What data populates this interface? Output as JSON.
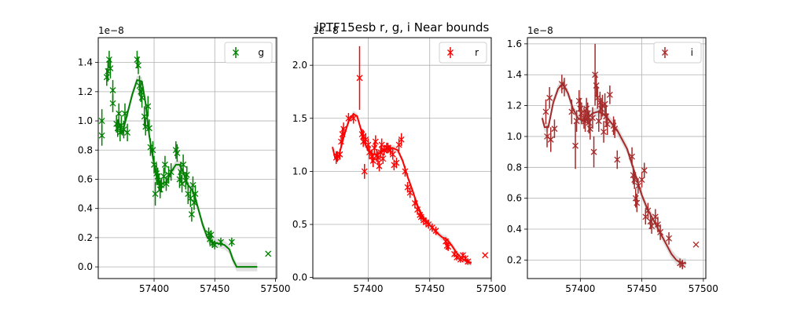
{
  "figure": {
    "title": "iPTF15esb  r, g, i Near bounds"
  },
  "chart_data": [
    {
      "type": "scatter",
      "band": "g",
      "color": "#008000",
      "legend": "g",
      "legend_position": "top-right",
      "grid": true,
      "scale_label": "1e−8",
      "xlim": [
        57354,
        57501
      ],
      "ylim": [
        -0.08,
        1.57
      ],
      "xticks": [
        57400,
        57450,
        57500
      ],
      "yticks": [
        0.0,
        0.2,
        0.4,
        0.6,
        0.8,
        1.0,
        1.2,
        1.4
      ],
      "x_tick_labels": [
        "57400",
        "57450",
        "57500"
      ],
      "y_tick_labels": [
        "0.0",
        "0.2",
        "0.4",
        "0.6",
        "0.8",
        "1.0",
        "1.2",
        "1.4"
      ],
      "points": [
        [
          57357,
          1.0,
          0.08
        ],
        [
          57357,
          0.9,
          0.07
        ],
        [
          57361,
          1.3,
          0.06
        ],
        [
          57362,
          1.34,
          0.07
        ],
        [
          57363,
          1.42,
          0.06
        ],
        [
          57364,
          1.36,
          0.07
        ],
        [
          57366,
          1.21,
          0.07
        ],
        [
          57366,
          1.12,
          0.06
        ],
        [
          57369,
          0.98,
          0.06
        ],
        [
          57370,
          0.95,
          0.06
        ],
        [
          57371,
          1.05,
          0.07
        ],
        [
          57372,
          0.92,
          0.06
        ],
        [
          57373,
          0.97,
          0.06
        ],
        [
          57375,
          0.94,
          0.06
        ],
        [
          57376,
          1.05,
          0.07
        ],
        [
          57378,
          0.92,
          0.06
        ],
        [
          57386,
          1.42,
          0.06
        ],
        [
          57387,
          1.38,
          0.06
        ],
        [
          57388,
          1.24,
          0.07
        ],
        [
          57389,
          1.2,
          0.07
        ],
        [
          57390,
          1.16,
          0.07
        ],
        [
          57392,
          1.03,
          0.07
        ],
        [
          57393,
          0.96,
          0.06
        ],
        [
          57395,
          1.1,
          0.07
        ],
        [
          57396,
          0.95,
          0.06
        ],
        [
          57397,
          0.82,
          0.06
        ],
        [
          57399,
          0.8,
          0.06
        ],
        [
          57400,
          0.7,
          0.06
        ],
        [
          57401,
          0.5,
          0.08
        ],
        [
          57402,
          0.64,
          0.07
        ],
        [
          57403,
          0.62,
          0.06
        ],
        [
          57404,
          0.58,
          0.06
        ],
        [
          57405,
          0.53,
          0.06
        ],
        [
          57406,
          0.56,
          0.05
        ],
        [
          57408,
          0.62,
          0.06
        ],
        [
          57409,
          0.7,
          0.06
        ],
        [
          57410,
          0.57,
          0.05
        ],
        [
          57412,
          0.63,
          0.06
        ],
        [
          57414,
          0.65,
          0.06
        ],
        [
          57418,
          0.8,
          0.06
        ],
        [
          57419,
          0.78,
          0.06
        ],
        [
          57421,
          0.6,
          0.06
        ],
        [
          57422,
          0.65,
          0.07
        ],
        [
          57423,
          0.57,
          0.06
        ],
        [
          57424,
          0.7,
          0.07
        ],
        [
          57426,
          0.59,
          0.06
        ],
        [
          57427,
          0.63,
          0.06
        ],
        [
          57428,
          0.5,
          0.07
        ],
        [
          57430,
          0.47,
          0.06
        ],
        [
          57431,
          0.36,
          0.05
        ],
        [
          57432,
          0.56,
          0.06
        ],
        [
          57433,
          0.44,
          0.05
        ],
        [
          57434,
          0.5,
          0.06
        ],
        [
          57445,
          0.23,
          0.04
        ],
        [
          57446,
          0.19,
          0.04
        ],
        [
          57447,
          0.22,
          0.03
        ],
        [
          57448,
          0.16,
          0.03
        ],
        [
          57450,
          0.15,
          0.03
        ],
        [
          57455,
          0.17,
          0.03
        ],
        [
          57464,
          0.17,
          0.03
        ],
        [
          57494,
          0.09,
          0.0
        ]
      ],
      "model": [
        [
          57370,
          1.0
        ],
        [
          57374,
          0.92
        ],
        [
          57378,
          1.05
        ],
        [
          57382,
          1.18
        ],
        [
          57386,
          1.28
        ],
        [
          57390,
          1.27
        ],
        [
          57393,
          1.12
        ],
        [
          57396,
          0.9
        ],
        [
          57399,
          0.75
        ],
        [
          57402,
          0.62
        ],
        [
          57406,
          0.57
        ],
        [
          57410,
          0.58
        ],
        [
          57414,
          0.65
        ],
        [
          57418,
          0.7
        ],
        [
          57421,
          0.7
        ],
        [
          57424,
          0.65
        ],
        [
          57427,
          0.57
        ],
        [
          57431,
          0.53
        ],
        [
          57434,
          0.47
        ],
        [
          57437,
          0.38
        ],
        [
          57440,
          0.29
        ],
        [
          57444,
          0.2
        ],
        [
          57448,
          0.17
        ],
        [
          57453,
          0.16
        ],
        [
          57458,
          0.15
        ],
        [
          57462,
          0.12
        ],
        [
          57465,
          0.05
        ],
        [
          57468,
          0.0
        ],
        [
          57476,
          0.0
        ],
        [
          57485,
          0.0
        ]
      ]
    },
    {
      "type": "scatter",
      "band": "r",
      "color": "#ff0000",
      "legend": "r",
      "legend_position": "top-right",
      "grid": true,
      "scale_label": "1e−8",
      "xlim": [
        57355,
        57500
      ],
      "ylim": [
        -0.01,
        2.26
      ],
      "xticks": [
        57400,
        57450,
        57500
      ],
      "yticks": [
        0.0,
        0.5,
        1.0,
        1.5,
        2.0
      ],
      "x_tick_labels": [
        "57400",
        "57450",
        "57500"
      ],
      "y_tick_labels": [
        "0.0",
        "0.5",
        "1.0",
        "1.5",
        "2.0"
      ],
      "points": [
        [
          57374,
          1.13,
          0.06
        ],
        [
          57375,
          1.14,
          0.05
        ],
        [
          57377,
          1.16,
          0.05
        ],
        [
          57378,
          1.28,
          0.06
        ],
        [
          57379,
          1.35,
          0.06
        ],
        [
          57380,
          1.4,
          0.06
        ],
        [
          57384,
          1.5,
          0.05
        ],
        [
          57388,
          1.5,
          0.05
        ],
        [
          57393,
          1.88,
          0.3
        ],
        [
          57395,
          1.35,
          0.05
        ],
        [
          57396,
          1.28,
          0.05
        ],
        [
          57396,
          1.33,
          0.06
        ],
        [
          57397,
          1.0,
          0.07
        ],
        [
          57398,
          1.3,
          0.06
        ],
        [
          57400,
          1.25,
          0.06
        ],
        [
          57401,
          1.18,
          0.06
        ],
        [
          57403,
          1.14,
          0.06
        ],
        [
          57404,
          1.1,
          0.06
        ],
        [
          57405,
          1.22,
          0.06
        ],
        [
          57406,
          1.28,
          0.06
        ],
        [
          57407,
          1.15,
          0.06
        ],
        [
          57408,
          1.13,
          0.06
        ],
        [
          57409,
          1.05,
          0.05
        ],
        [
          57410,
          1.18,
          0.06
        ],
        [
          57411,
          1.25,
          0.06
        ],
        [
          57412,
          1.12,
          0.05
        ],
        [
          57413,
          1.2,
          0.05
        ],
        [
          57415,
          1.22,
          0.05
        ],
        [
          57416,
          1.22,
          0.05
        ],
        [
          57418,
          1.2,
          0.05
        ],
        [
          57420,
          1.16,
          0.05
        ],
        [
          57421,
          1.06,
          0.05
        ],
        [
          57423,
          1.08,
          0.05
        ],
        [
          57425,
          1.25,
          0.06
        ],
        [
          57427,
          1.3,
          0.06
        ],
        [
          57430,
          1.0,
          0.05
        ],
        [
          57432,
          0.85,
          0.05
        ],
        [
          57434,
          0.8,
          0.05
        ],
        [
          57438,
          0.7,
          0.05
        ],
        [
          57440,
          0.64,
          0.05
        ],
        [
          57442,
          0.59,
          0.04
        ],
        [
          57443,
          0.57,
          0.04
        ],
        [
          57445,
          0.54,
          0.04
        ],
        [
          57447,
          0.52,
          0.04
        ],
        [
          57449,
          0.5,
          0.04
        ],
        [
          57452,
          0.47,
          0.04
        ],
        [
          57455,
          0.44,
          0.04
        ],
        [
          57463,
          0.34,
          0.04
        ],
        [
          57464,
          0.3,
          0.04
        ],
        [
          57465,
          0.29,
          0.04
        ],
        [
          57470,
          0.22,
          0.03
        ],
        [
          57472,
          0.19,
          0.03
        ],
        [
          57475,
          0.17,
          0.03
        ],
        [
          57477,
          0.21,
          0.03
        ],
        [
          57479,
          0.18,
          0.03
        ],
        [
          57481,
          0.15,
          0.03
        ],
        [
          57495,
          0.21,
          0.0
        ]
      ],
      "model": [
        [
          57371,
          1.23
        ],
        [
          57373,
          1.13
        ],
        [
          57376,
          1.14
        ],
        [
          57380,
          1.32
        ],
        [
          57384,
          1.47
        ],
        [
          57388,
          1.54
        ],
        [
          57391,
          1.52
        ],
        [
          57394,
          1.4
        ],
        [
          57397,
          1.27
        ],
        [
          57400,
          1.2
        ],
        [
          57404,
          1.16
        ],
        [
          57408,
          1.16
        ],
        [
          57412,
          1.2
        ],
        [
          57416,
          1.22
        ],
        [
          57420,
          1.22
        ],
        [
          57424,
          1.2
        ],
        [
          57428,
          1.1
        ],
        [
          57432,
          0.95
        ],
        [
          57436,
          0.82
        ],
        [
          57440,
          0.68
        ],
        [
          57444,
          0.58
        ],
        [
          57448,
          0.52
        ],
        [
          57452,
          0.47
        ],
        [
          57456,
          0.42
        ],
        [
          57460,
          0.38
        ],
        [
          57464,
          0.36
        ],
        [
          57468,
          0.3
        ],
        [
          57472,
          0.23
        ],
        [
          57476,
          0.18
        ],
        [
          57480,
          0.15
        ],
        [
          57484,
          0.14
        ]
      ]
    },
    {
      "type": "scatter",
      "band": "i",
      "color": "#a52a2a",
      "legend": "i",
      "legend_position": "top-right",
      "grid": true,
      "scale_label": "1e−8",
      "xlim": [
        57357,
        57502
      ],
      "ylim": [
        0.08,
        1.64
      ],
      "xticks": [
        57400,
        57450,
        57500
      ],
      "yticks": [
        0.2,
        0.4,
        0.6,
        0.8,
        1.0,
        1.2,
        1.4,
        1.6
      ],
      "x_tick_labels": [
        "57400",
        "57450",
        "57500"
      ],
      "y_tick_labels": [
        "0.2",
        "0.4",
        "0.6",
        "0.8",
        "1.0",
        "1.2",
        "1.4",
        "1.6"
      ],
      "points": [
        [
          57372,
          1.16,
          0.08
        ],
        [
          57373,
          1.0,
          0.07
        ],
        [
          57375,
          1.25,
          0.07
        ],
        [
          57376,
          0.98,
          0.08
        ],
        [
          57379,
          1.05,
          0.06
        ],
        [
          57385,
          1.34,
          0.06
        ],
        [
          57387,
          1.32,
          0.06
        ],
        [
          57393,
          1.16,
          0.08
        ],
        [
          57396,
          0.94,
          0.15
        ],
        [
          57397,
          1.1,
          0.07
        ],
        [
          57399,
          1.23,
          0.07
        ],
        [
          57400,
          1.18,
          0.07
        ],
        [
          57401,
          1.15,
          0.07
        ],
        [
          57403,
          1.12,
          0.07
        ],
        [
          57404,
          1.1,
          0.07
        ],
        [
          57405,
          1.18,
          0.07
        ],
        [
          57406,
          1.15,
          0.07
        ],
        [
          57407,
          1.09,
          0.07
        ],
        [
          57408,
          1.05,
          0.07
        ],
        [
          57410,
          1.12,
          0.07
        ],
        [
          57411,
          0.9,
          0.1
        ],
        [
          57412,
          1.4,
          0.2
        ],
        [
          57413,
          1.33,
          0.07
        ],
        [
          57414,
          1.25,
          0.07
        ],
        [
          57415,
          1.1,
          0.07
        ],
        [
          57416,
          1.22,
          0.07
        ],
        [
          57417,
          1.18,
          0.07
        ],
        [
          57418,
          1.2,
          0.07
        ],
        [
          57419,
          1.03,
          0.07
        ],
        [
          57420,
          1.21,
          0.07
        ],
        [
          57421,
          1.13,
          0.07
        ],
        [
          57422,
          1.08,
          0.07
        ],
        [
          57424,
          1.27,
          0.06
        ],
        [
          57427,
          1.07,
          0.06
        ],
        [
          57428,
          1.05,
          0.06
        ],
        [
          57430,
          0.85,
          0.06
        ],
        [
          57442,
          0.87,
          0.06
        ],
        [
          57443,
          0.75,
          0.06
        ],
        [
          57444,
          0.72,
          0.06
        ],
        [
          57445,
          0.6,
          0.06
        ],
        [
          57446,
          0.57,
          0.06
        ],
        [
          57447,
          0.68,
          0.05
        ],
        [
          57450,
          0.72,
          0.05
        ],
        [
          57452,
          0.78,
          0.05
        ],
        [
          57453,
          0.48,
          0.05
        ],
        [
          57455,
          0.52,
          0.05
        ],
        [
          57457,
          0.45,
          0.05
        ],
        [
          57458,
          0.42,
          0.05
        ],
        [
          57461,
          0.48,
          0.05
        ],
        [
          57463,
          0.43,
          0.05
        ],
        [
          57465,
          0.38,
          0.05
        ],
        [
          57472,
          0.34,
          0.04
        ],
        [
          57481,
          0.18,
          0.03
        ],
        [
          57483,
          0.17,
          0.03
        ],
        [
          57494,
          0.3,
          0.0
        ]
      ],
      "model": [
        [
          57369,
          1.12
        ],
        [
          57371,
          1.06
        ],
        [
          57374,
          1.06
        ],
        [
          57378,
          1.22
        ],
        [
          57382,
          1.31
        ],
        [
          57386,
          1.34
        ],
        [
          57390,
          1.28
        ],
        [
          57394,
          1.18
        ],
        [
          57398,
          1.12
        ],
        [
          57402,
          1.1
        ],
        [
          57406,
          1.12
        ],
        [
          57410,
          1.15
        ],
        [
          57414,
          1.16
        ],
        [
          57418,
          1.15
        ],
        [
          57422,
          1.12
        ],
        [
          57426,
          1.08
        ],
        [
          57430,
          1.04
        ],
        [
          57434,
          0.98
        ],
        [
          57438,
          0.92
        ],
        [
          57442,
          0.82
        ],
        [
          57446,
          0.72
        ],
        [
          57450,
          0.62
        ],
        [
          57454,
          0.54
        ],
        [
          57458,
          0.48
        ],
        [
          57462,
          0.42
        ],
        [
          57466,
          0.36
        ],
        [
          57470,
          0.3
        ],
        [
          57474,
          0.24
        ],
        [
          57478,
          0.2
        ],
        [
          57482,
          0.18
        ],
        [
          57486,
          0.18
        ]
      ]
    }
  ]
}
